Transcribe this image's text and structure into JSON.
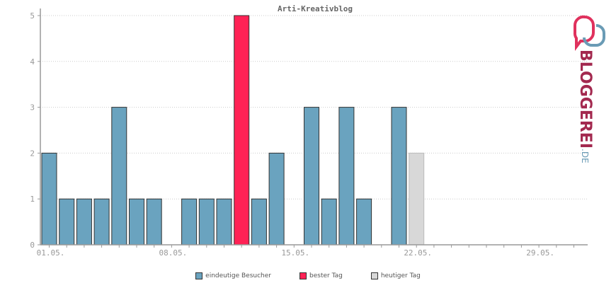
{
  "chart_data": {
    "type": "bar",
    "title": "Arti-Kreativblog",
    "x": [
      "01.05.",
      "02.05.",
      "03.05.",
      "04.05.",
      "05.05.",
      "06.05.",
      "07.05.",
      "08.05.",
      "09.05.",
      "10.05.",
      "11.05.",
      "12.05.",
      "13.05.",
      "14.05.",
      "15.05.",
      "16.05.",
      "17.05.",
      "18.05.",
      "19.05.",
      "20.05.",
      "21.05.",
      "22.05.",
      "23.05.",
      "24.05.",
      "25.05.",
      "26.05.",
      "27.05.",
      "28.05.",
      "29.05.",
      "30.05.",
      "31.05."
    ],
    "values": [
      2,
      1,
      1,
      1,
      3,
      1,
      1,
      0,
      1,
      1,
      1,
      5,
      1,
      2,
      0,
      3,
      1,
      3,
      1,
      0,
      3,
      2,
      0,
      0,
      0,
      0,
      0,
      0,
      0,
      0,
      0
    ],
    "bar_kind": [
      "normal",
      "normal",
      "normal",
      "normal",
      "normal",
      "normal",
      "normal",
      "normal",
      "normal",
      "normal",
      "normal",
      "best",
      "normal",
      "normal",
      "normal",
      "normal",
      "normal",
      "normal",
      "normal",
      "normal",
      "normal",
      "today",
      "normal",
      "normal",
      "normal",
      "normal",
      "normal",
      "normal",
      "normal",
      "normal",
      "normal"
    ],
    "xtick_labels": [
      "01.05.",
      "08.05.",
      "15.05.",
      "22.05.",
      "29.05."
    ],
    "ylim": [
      0,
      5
    ],
    "yticks": [
      "0",
      "1",
      "2",
      "3",
      "4",
      "5"
    ],
    "grid": true,
    "legend_position": "bottom-center",
    "legend": [
      {
        "label": "eindeutige Besucher",
        "color": "#6aa3bf"
      },
      {
        "label": "bester Tag",
        "color": "#ff2255"
      },
      {
        "label": "heutiger Tag",
        "color": "#d8d8d8"
      }
    ],
    "colors": {
      "normal": "#6aa3bf",
      "best": "#ff2255",
      "today": "#d8d8d8"
    }
  },
  "logo": {
    "text": "BLOGGEREI",
    "suffix": ".DE"
  }
}
